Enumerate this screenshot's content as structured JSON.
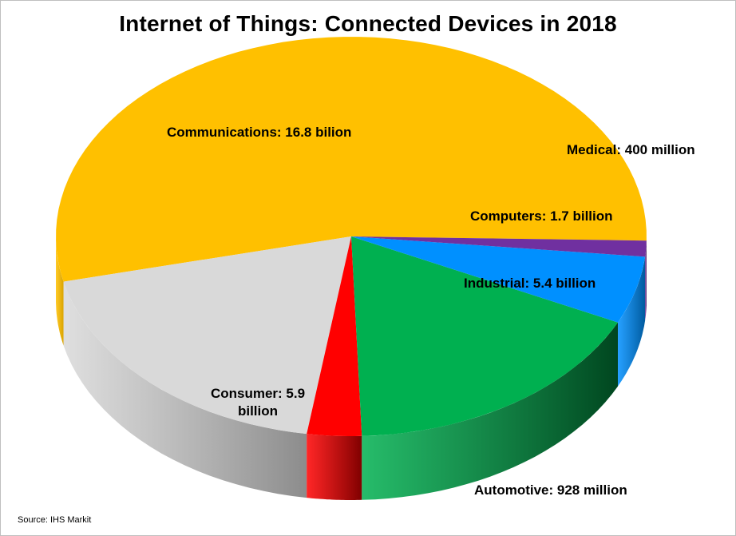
{
  "chart_data": {
    "type": "pie",
    "title": "Internet of Things: Connected Devices in 2018",
    "slices": [
      {
        "key": "communications",
        "value": 16.8,
        "color": "#FFC000",
        "side": "#D9A300",
        "label": "Communications:  16.8 bilion"
      },
      {
        "key": "consumer",
        "value": 5.9,
        "color": "#D9D9D9",
        "side": "#8C8C8C",
        "label_line1": "Consumer:  5.9",
        "label_line2": "billion"
      },
      {
        "key": "automotive",
        "value": 0.928,
        "color": "#FF0000",
        "side": "#7F0000",
        "label": "Automotive:  928 million"
      },
      {
        "key": "industrial",
        "value": 5.4,
        "color": "#00B050",
        "side": "#00461F",
        "label": "Industrial:  5.4 billion"
      },
      {
        "key": "computers",
        "value": 1.7,
        "color": "#0090FF",
        "side": "#005A9E",
        "label": "Computers:  1.7 billion"
      },
      {
        "key": "medical",
        "value": 0.4,
        "color": "#7030A0",
        "side": "#45205F",
        "label": "Medical:  400 million"
      }
    ],
    "units": "billion devices"
  },
  "source": "Source:  IHS Markit"
}
